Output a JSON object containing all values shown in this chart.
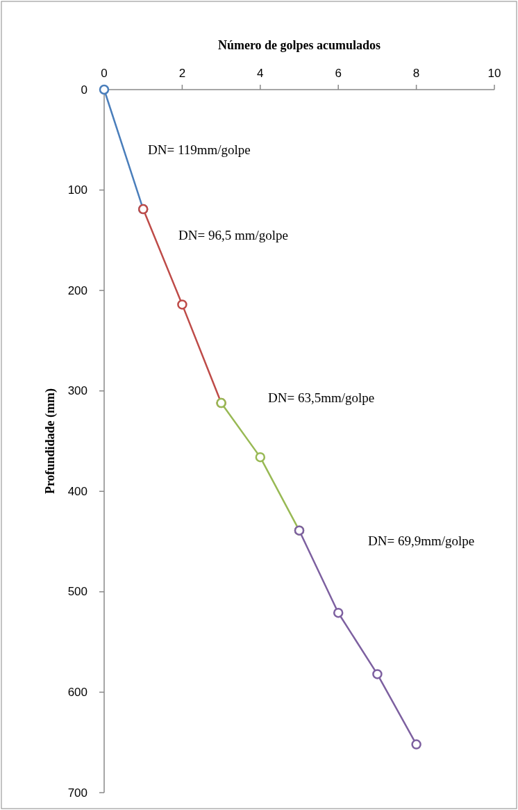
{
  "chart_data": {
    "type": "line",
    "xlabel": "Número de golpes acumulados",
    "ylabel": "Profundidade (mm)",
    "xlim": [
      0,
      10
    ],
    "xticks": [
      0,
      2,
      4,
      6,
      8,
      10
    ],
    "ylim": [
      700,
      0
    ],
    "yticks": [
      0,
      100,
      200,
      300,
      400,
      500,
      600,
      700
    ],
    "grid": false,
    "marker": "circle",
    "line_style": "solid",
    "series": [
      {
        "color": "#4a7ebb",
        "x": [
          0,
          1
        ],
        "values": [
          0,
          119
        ]
      },
      {
        "color": "#be4b48",
        "x": [
          1,
          2,
          3
        ],
        "values": [
          119,
          214,
          312
        ]
      },
      {
        "color": "#98b954",
        "x": [
          3,
          4,
          5
        ],
        "values": [
          312,
          366,
          439
        ]
      },
      {
        "color": "#7d60a0",
        "x": [
          5,
          6,
          7,
          8
        ],
        "values": [
          439,
          521,
          582,
          652
        ]
      }
    ],
    "annotations": [
      "DN= 119mm/golpe",
      "DN= 96,5 mm/golpe",
      "DN= 63,5mm/golpe",
      "DN= 69,9mm/golpe"
    ]
  }
}
